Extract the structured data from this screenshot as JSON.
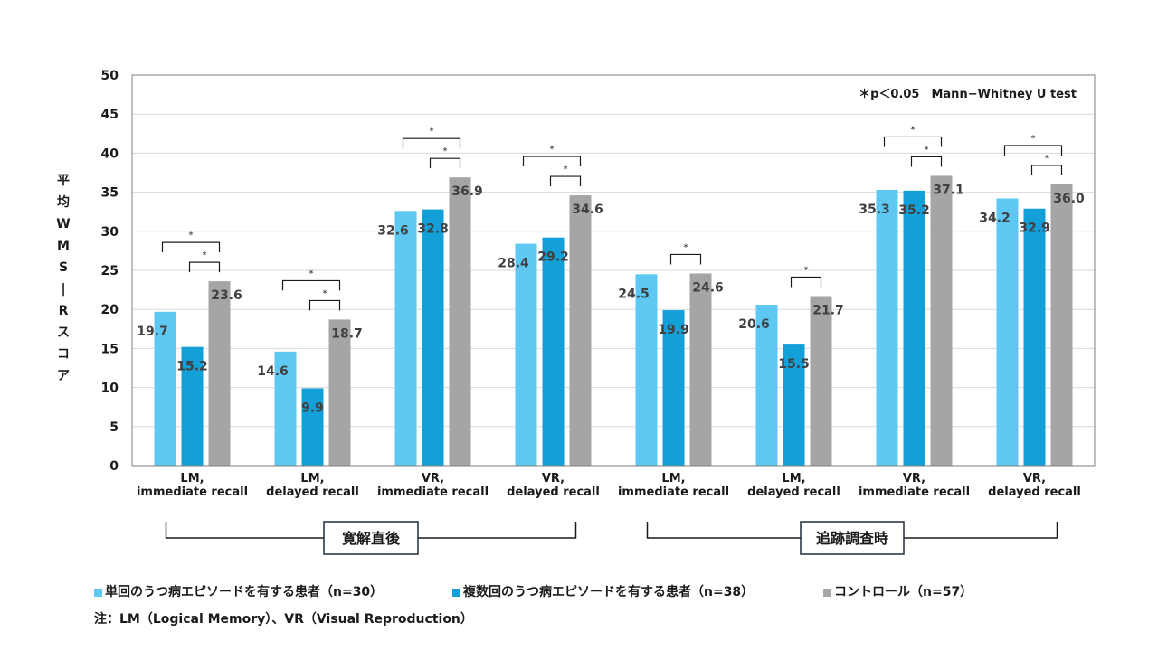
{
  "chart_data": {
    "type": "bar",
    "title": "",
    "ylabel": "平均WMS−Rスコア",
    "xlabel": "",
    "ylim": [
      0,
      50
    ],
    "yticks": [
      0,
      5,
      10,
      15,
      20,
      25,
      30,
      35,
      40,
      45,
      50
    ],
    "grid": true,
    "annotation": "＊p＜0.05　Mann−Whitney U test",
    "categories": [
      {
        "line1": "LM,",
        "line2": "immediate recall"
      },
      {
        "line1": "LM,",
        "line2": "delayed recall"
      },
      {
        "line1": "VR,",
        "line2": "immediate recall"
      },
      {
        "line1": "VR,",
        "line2": "delayed recall"
      },
      {
        "line1": "LM,",
        "line2": "immediate recall"
      },
      {
        "line1": "LM,",
        "line2": "delayed recall"
      },
      {
        "line1": "VR,",
        "line2": "immediate recall"
      },
      {
        "line1": "VR,",
        "line2": "delayed recall"
      }
    ],
    "groups": [
      {
        "label": "寛解直後",
        "categories": [
          0,
          1,
          2,
          3
        ]
      },
      {
        "label": "追跡調査時",
        "categories": [
          4,
          5,
          6,
          7
        ]
      }
    ],
    "series": [
      {
        "name": "単回のうつ病エピソードを有する患者（n=30）",
        "color": "#5ec8f2",
        "values": [
          19.7,
          14.6,
          32.6,
          28.4,
          24.5,
          20.6,
          35.3,
          34.2
        ]
      },
      {
        "name": "複数回のうつ病エピソードを有する患者（n=38）",
        "color": "#139fd7",
        "values": [
          15.2,
          9.9,
          32.8,
          29.2,
          19.9,
          15.5,
          35.2,
          32.9
        ]
      },
      {
        "name": "コントロール（n=57）",
        "color": "#a5a5a5",
        "values": [
          23.6,
          18.7,
          36.9,
          34.6,
          24.6,
          21.7,
          37.1,
          36.0
        ]
      }
    ],
    "significance": [
      {
        "category": 0,
        "from": 0,
        "to": 2,
        "label": "*"
      },
      {
        "category": 0,
        "from": 1,
        "to": 2,
        "label": "*"
      },
      {
        "category": 1,
        "from": 0,
        "to": 2,
        "label": "*"
      },
      {
        "category": 1,
        "from": 1,
        "to": 2,
        "label": "*"
      },
      {
        "category": 2,
        "from": 0,
        "to": 2,
        "label": "*"
      },
      {
        "category": 2,
        "from": 1,
        "to": 2,
        "label": "*"
      },
      {
        "category": 3,
        "from": 0,
        "to": 2,
        "label": "*"
      },
      {
        "category": 3,
        "from": 1,
        "to": 2,
        "label": "*"
      },
      {
        "category": 4,
        "from": 1,
        "to": 2,
        "label": "*"
      },
      {
        "category": 5,
        "from": 1,
        "to": 2,
        "label": "*"
      },
      {
        "category": 6,
        "from": 0,
        "to": 2,
        "label": "*"
      },
      {
        "category": 6,
        "from": 1,
        "to": 2,
        "label": "*"
      },
      {
        "category": 7,
        "from": 0,
        "to": 2,
        "label": "*"
      },
      {
        "category": 7,
        "from": 1,
        "to": 2,
        "label": "*"
      }
    ],
    "legend_position": "bottom"
  },
  "legend": [
    {
      "label": "単回のうつ病エピソードを有する患者（n=30）",
      "color": "#5ec8f2"
    },
    {
      "label": "複数回のうつ病エピソードを有する患者（n=38）",
      "color": "#139fd7"
    },
    {
      "label": "コントロール（n=57）",
      "color": "#a5a5a5"
    }
  ],
  "note": "注：LM（Logical Memory）、VR（Visual Reproduction）"
}
